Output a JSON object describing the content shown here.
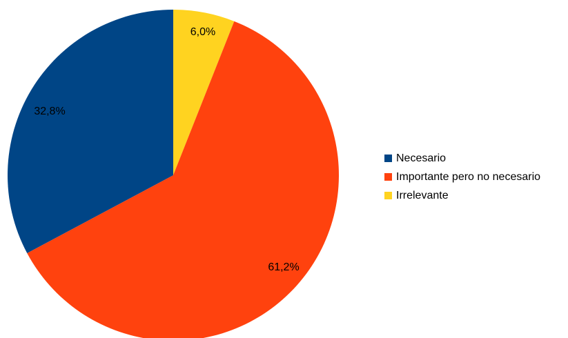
{
  "chart_data": {
    "type": "pie",
    "title": "",
    "categories": [
      "Necesario",
      "Importante pero no necesario",
      "Irrelevante"
    ],
    "values": [
      32.8,
      61.2,
      6.0
    ],
    "value_labels": [
      "32,8%",
      "61,2%",
      "6,0%"
    ],
    "colors": [
      "#004586",
      "#ff420e",
      "#ffd320"
    ],
    "start_angle": "12 o'clock",
    "direction": "clockwise",
    "slice_order": [
      2,
      1,
      0
    ],
    "legend": {
      "position": "right",
      "items": [
        {
          "label": "Necesario",
          "color": "#004586"
        },
        {
          "label": "Importante pero no necesario",
          "color": "#ff420e"
        },
        {
          "label": "Irrelevante",
          "color": "#ffd320"
        }
      ]
    }
  }
}
